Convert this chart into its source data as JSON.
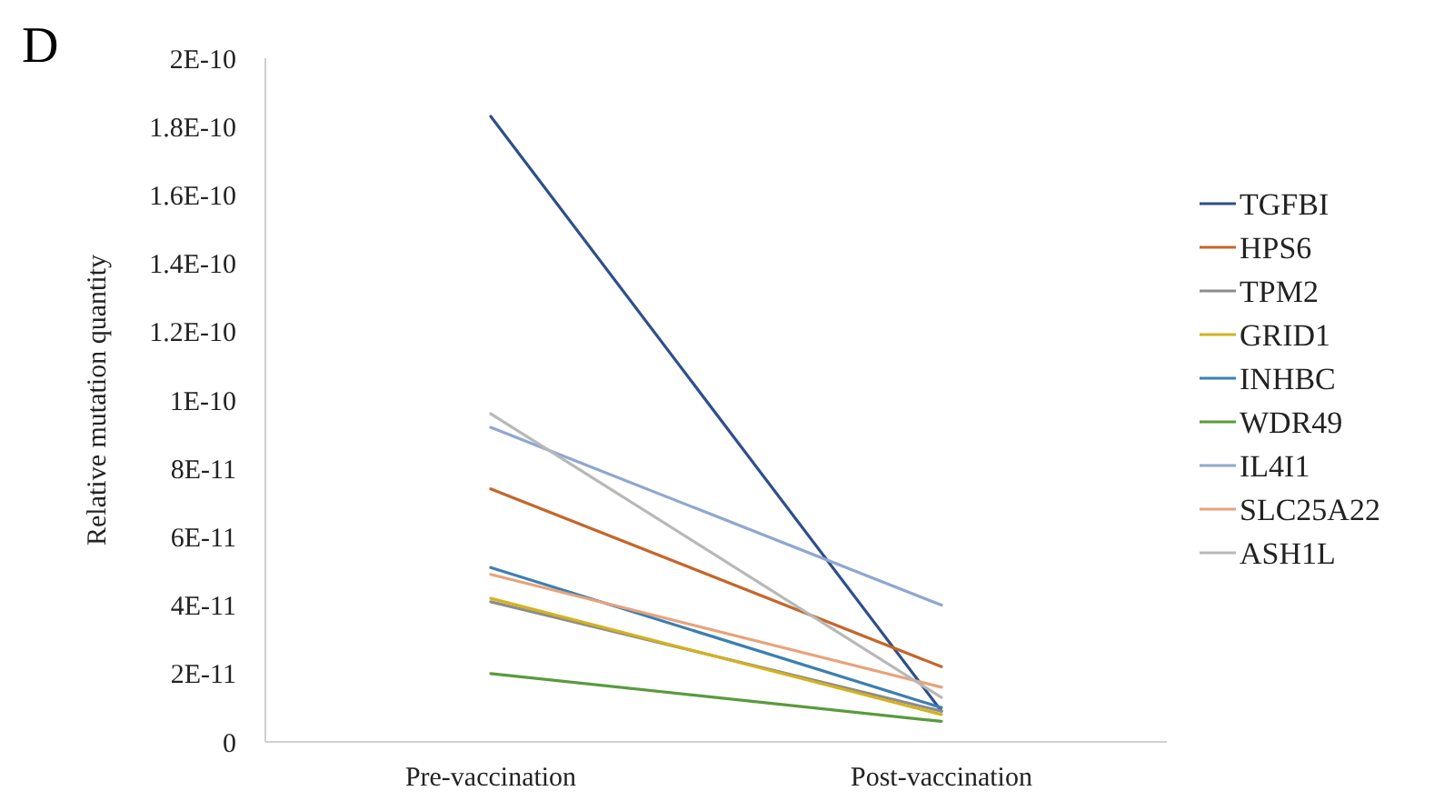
{
  "chart_data": {
    "type": "line",
    "ylabel": "Relative mutation quantity",
    "annotations": [
      "D"
    ],
    "categories": [
      "Pre-vaccination",
      "Post-vaccination"
    ],
    "series": [
      {
        "name": "TGFBI",
        "color": "#2f4f8a",
        "values": [
          1.83e-10,
          9e-12
        ]
      },
      {
        "name": "HPS6",
        "color": "#c5662a",
        "values": [
          7.4e-11,
          2.2e-11
        ]
      },
      {
        "name": "TPM2",
        "color": "#8c8c8c",
        "values": [
          4.1e-11,
          9e-12
        ]
      },
      {
        "name": "GRID1",
        "color": "#d4b21e",
        "values": [
          4.2e-11,
          8e-12
        ]
      },
      {
        "name": "INHBC",
        "color": "#3c7fb0",
        "values": [
          5.1e-11,
          1e-11
        ]
      },
      {
        "name": "WDR49",
        "color": "#5a9a3c",
        "values": [
          2e-11,
          6e-12
        ]
      },
      {
        "name": "IL4I1",
        "color": "#8fa7d0",
        "values": [
          9.2e-11,
          4e-11
        ]
      },
      {
        "name": "SLC25A22",
        "color": "#e8a27a",
        "values": [
          4.9e-11,
          1.6e-11
        ]
      },
      {
        "name": "ASH1L",
        "color": "#b8b8b8",
        "values": [
          9.6e-11,
          1.3e-11
        ]
      }
    ],
    "ylim": [
      0,
      2e-10
    ],
    "yticks": [
      {
        "value": 0,
        "label": "0"
      },
      {
        "value": 2e-11,
        "label": "2E-11"
      },
      {
        "value": 4e-11,
        "label": "4E-11"
      },
      {
        "value": 6e-11,
        "label": "6E-11"
      },
      {
        "value": 8e-11,
        "label": "8E-11"
      },
      {
        "value": 1e-10,
        "label": "1E-10"
      },
      {
        "value": 1.2e-10,
        "label": "1.2E-10"
      },
      {
        "value": 1.4e-10,
        "label": "1.4E-10"
      },
      {
        "value": 1.6e-10,
        "label": "1.6E-10"
      },
      {
        "value": 1.8e-10,
        "label": "1.8E-10"
      },
      {
        "value": 2e-10,
        "label": "2E-10"
      }
    ],
    "legend": "right",
    "marker": "none",
    "line_style": "solid"
  }
}
